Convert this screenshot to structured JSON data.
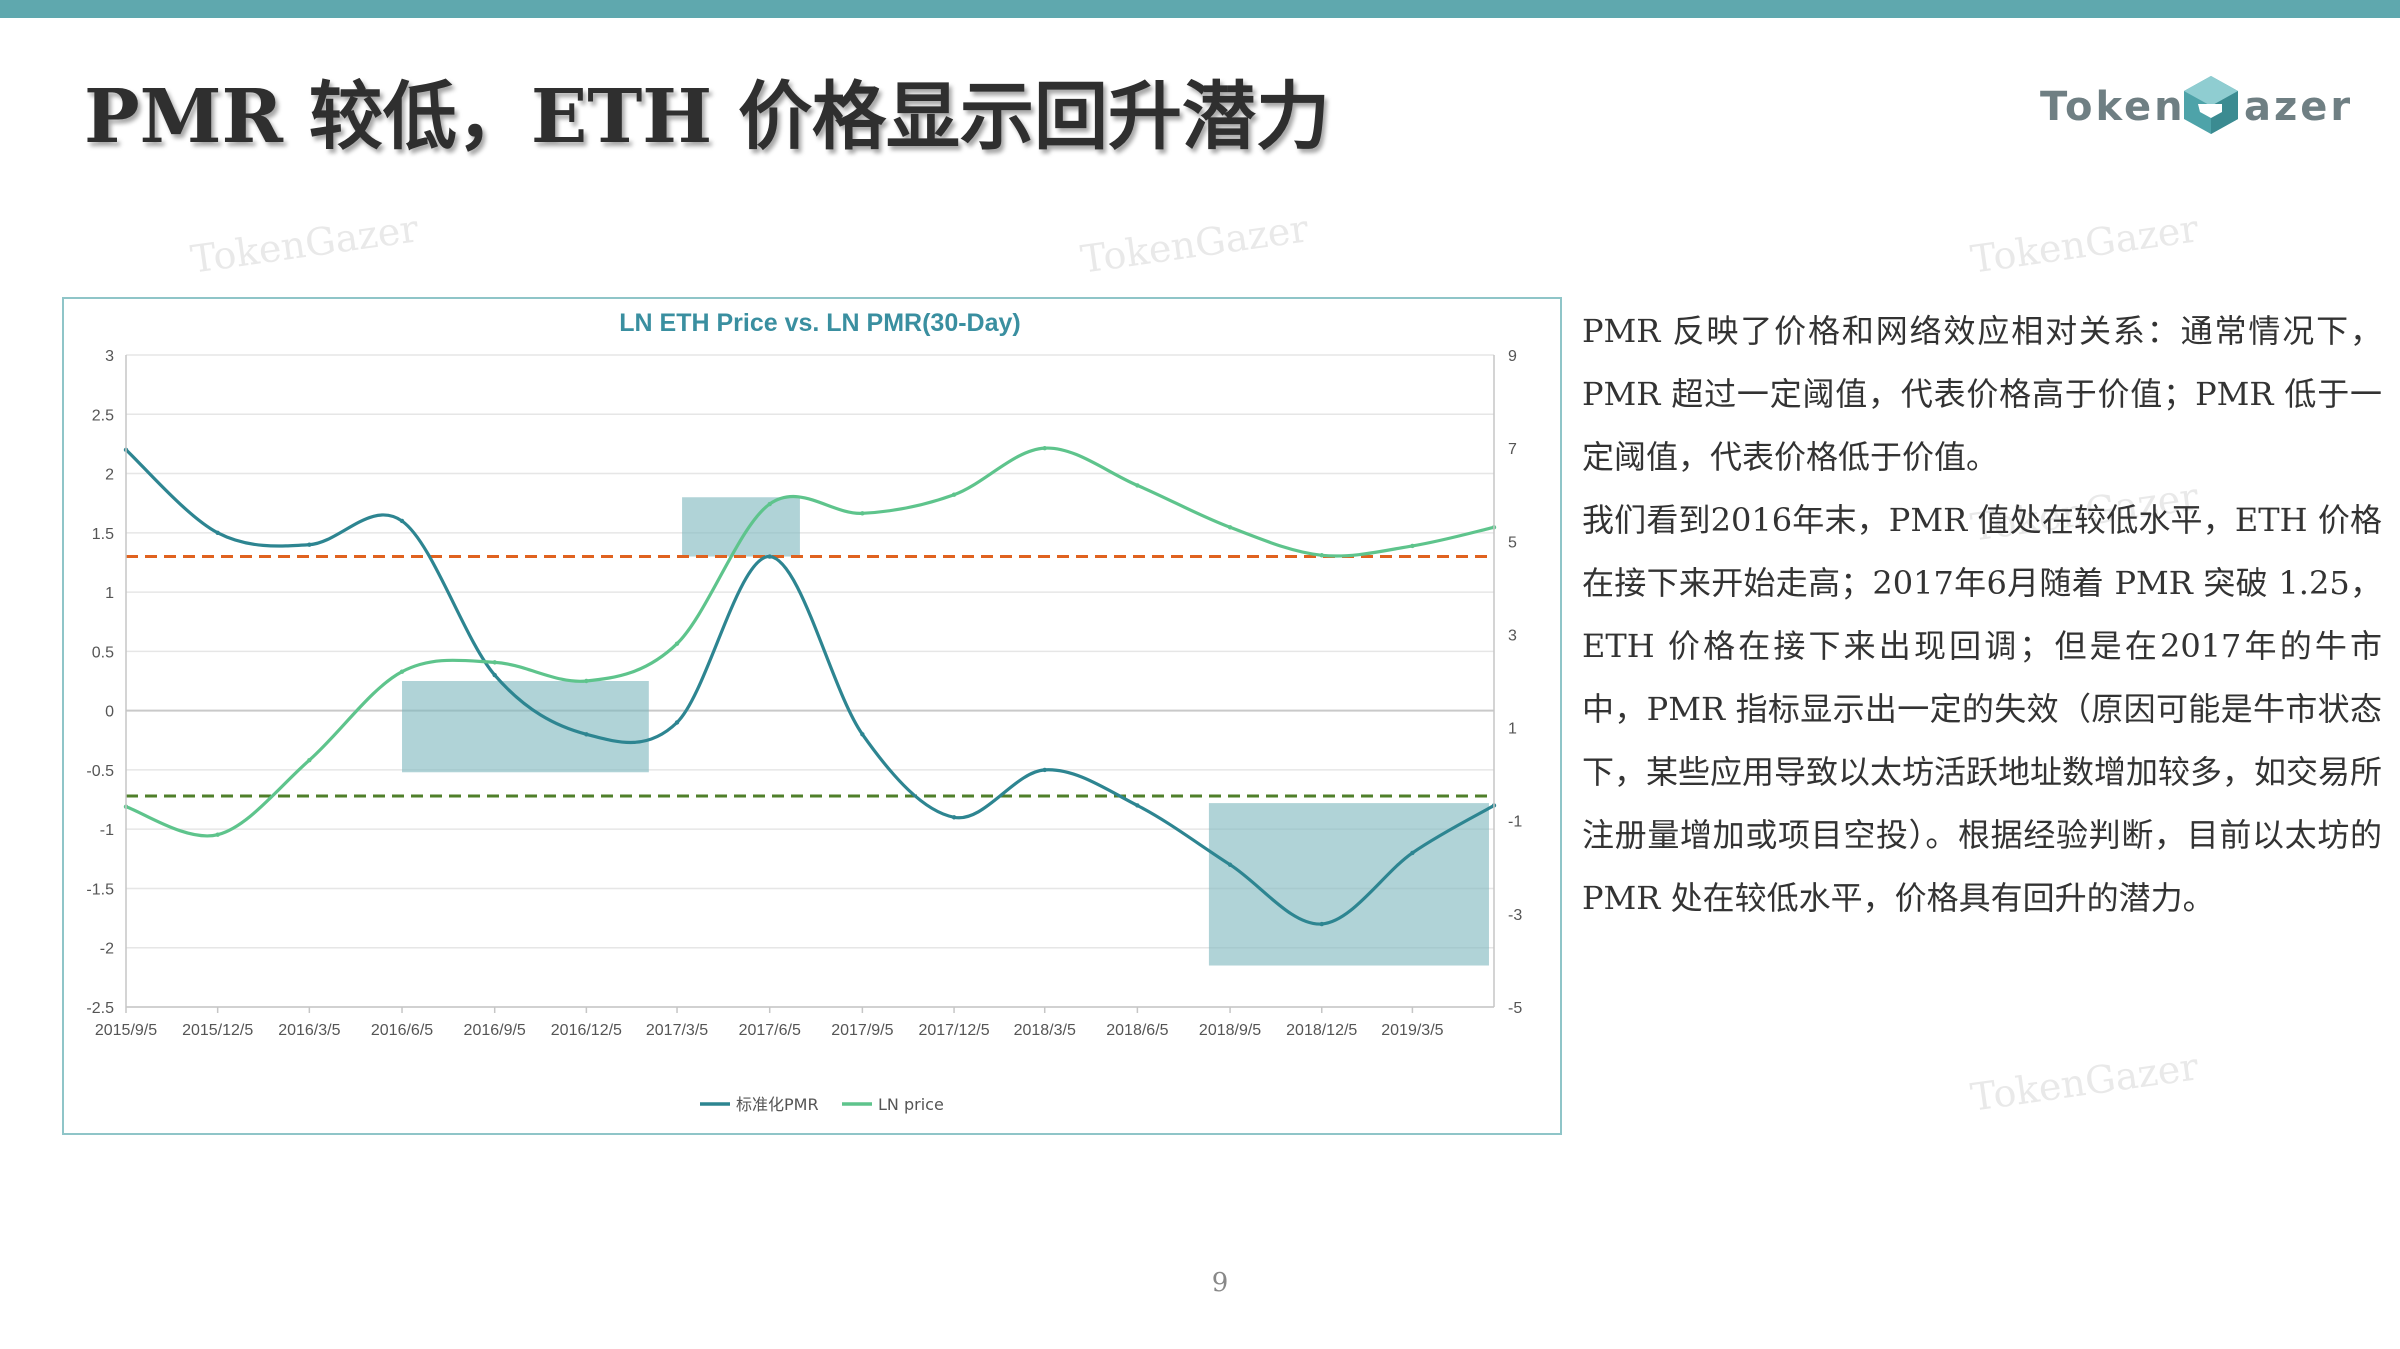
{
  "slide": {
    "title": "PMR 较低，ETH 价格显示回升潜力",
    "page_number": "9"
  },
  "logo": {
    "text_left": "Token",
    "text_right": "azer",
    "mark": "G-cube-mark"
  },
  "watermark": "TokenGazer",
  "colors": {
    "top_bar": "#5fa8ae",
    "pmr_line": "#2d8591",
    "price_line": "#5ec48c",
    "upper_threshold": "#e0621f",
    "lower_threshold": "#4f7f2a",
    "highlight": "#7fb8bf"
  },
  "body_paragraphs": [
    "PMR 反映了价格和网络效应相对关系：通常情况下，PMR 超过一定阈值，代表价格高于价值；PMR 低于一定阈值，代表价格低于价值。",
    "我们看到2016年末，PMR 值处在较低水平，ETH 价格在接下来开始走高；2017年6月随着 PMR 突破 1.25，ETH 价格在接下来出现回调；但是在2017年的牛市中，PMR 指标显示出一定的失效（原因可能是牛市状态下，某些应用导致以太坊活跃地址数增加较多，如交易所注册量增加或项目空投）。根据经验判断，目前以太坊的 PMR 处在较低水平，价格具有回升的潜力。"
  ],
  "chart_data": {
    "type": "line",
    "title": "LN ETH Price vs. LN PMR(30-Day)",
    "x_tick_labels": [
      "2015/9/5",
      "2015/12/5",
      "2016/3/5",
      "2016/6/5",
      "2016/9/5",
      "2016/12/5",
      "2017/3/5",
      "2017/6/5",
      "2017/9/5",
      "2017/12/5",
      "2018/3/5",
      "2018/6/5",
      "2018/9/5",
      "2018/12/5",
      "2019/3/5"
    ],
    "x": [
      "2015/9/5",
      "2015/12/5",
      "2016/3/5",
      "2016/6/5",
      "2016/9/5",
      "2016/12/5",
      "2017/3/5",
      "2017/6/5",
      "2017/9/5",
      "2017/12/5",
      "2018/3/5",
      "2018/6/5",
      "2018/9/5",
      "2018/12/5",
      "2019/3/5",
      "2019/5/25"
    ],
    "y_left": {
      "ticks": [
        "3",
        "2.5",
        "2",
        "1.5",
        "1",
        "0.5",
        "0",
        "-0.5",
        "-1",
        "-1.5",
        "-2",
        "-2.5"
      ],
      "range": [
        -2.5,
        3
      ]
    },
    "y_right": {
      "ticks": [
        "9",
        "7",
        "5",
        "3",
        "1",
        "-1",
        "-3",
        "-5"
      ],
      "range": [
        -5,
        9
      ]
    },
    "series": [
      {
        "name": "标准化PMR",
        "axis": "left",
        "color": "#2d8591",
        "values": [
          2.2,
          1.5,
          1.4,
          1.6,
          0.3,
          -0.2,
          -0.1,
          1.3,
          -0.2,
          -0.9,
          -0.5,
          -0.8,
          -1.3,
          -1.8,
          -1.2,
          -0.8
        ]
      },
      {
        "name": "LN price",
        "axis": "right",
        "color": "#5ec48c",
        "values": [
          -0.7,
          -1.3,
          0.3,
          2.2,
          2.4,
          2.0,
          2.8,
          5.8,
          5.6,
          6.0,
          7.0,
          6.2,
          5.3,
          4.7,
          4.9,
          5.3
        ]
      }
    ],
    "thresholds": [
      {
        "axis": "left",
        "value": 1.3,
        "color": "#e0621f"
      },
      {
        "axis": "left",
        "value": -0.72,
        "color": "#4f7f2a"
      }
    ],
    "highlight_regions": [
      {
        "x_start": "2016/6/5",
        "x_end": "2017/2/5",
        "y_top": 0.25,
        "y_bottom": -0.52
      },
      {
        "x_start": "2017/3/10",
        "x_end": "2017/7/5",
        "y_top": 1.8,
        "y_bottom": 1.3
      },
      {
        "x_start": "2018/8/15",
        "x_end": "2019/5/20",
        "y_top": -0.78,
        "y_bottom": -2.15
      }
    ],
    "grid": "horizontal",
    "legend": "bottom-center"
  }
}
